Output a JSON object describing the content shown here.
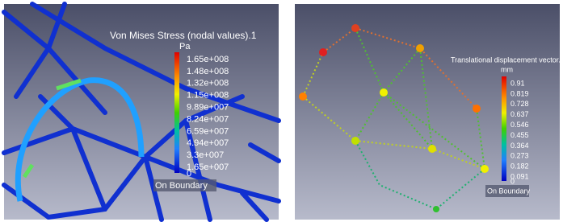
{
  "panels": [
    {
      "legend_title": "Von Mises Stress (nodal values).1",
      "unit": "Pa",
      "labels": [
        "1.65e+008",
        "1.48e+008",
        "1.32e+008",
        "1.15e+008",
        "9.89e+007",
        "8.24e+007",
        "6.59e+007",
        "4.94e+007",
        "3.3e+007",
        "1.65e+007",
        "0"
      ],
      "footer": "On Boundary"
    },
    {
      "legend_title": "Translational displacement vector.",
      "unit": "mm",
      "labels": [
        "0.91",
        "0.819",
        "0.728",
        "0.637",
        "0.546",
        "0.455",
        "0.364",
        "0.273",
        "0.182",
        "0.091",
        "0"
      ],
      "footer": "On Boundary"
    }
  ]
}
